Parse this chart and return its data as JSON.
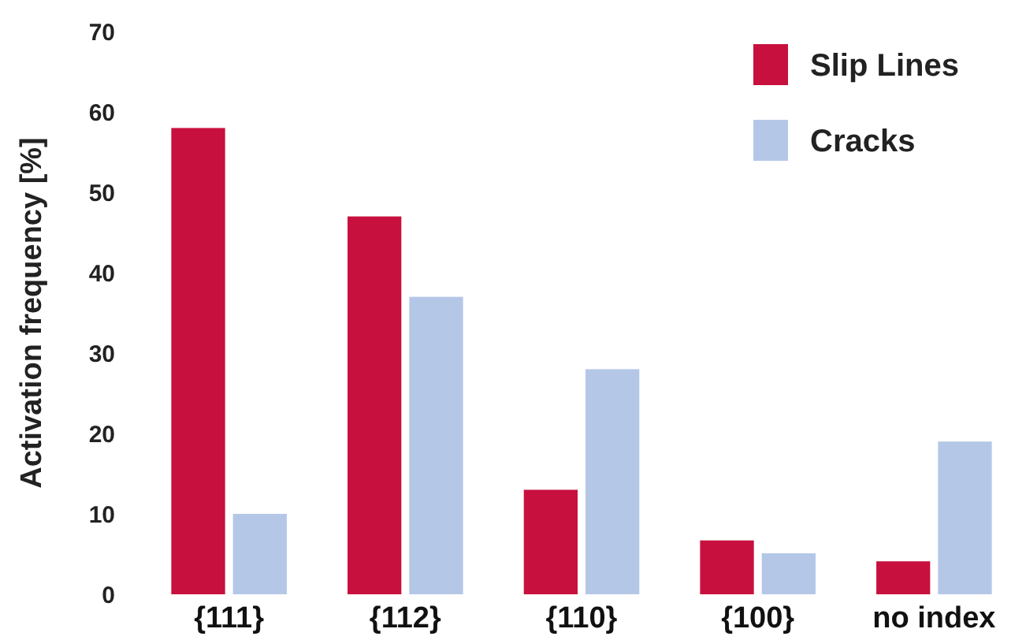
{
  "chart_data": {
    "type": "bar",
    "ylabel": "Activation frequency [%]",
    "categories": [
      "{111}",
      "{112}",
      "{110}",
      "{100}",
      "no index"
    ],
    "series": [
      {
        "name": "Slip Lines",
        "color": "#c8103e",
        "values": [
          58,
          47,
          13,
          6.7,
          4.1
        ]
      },
      {
        "name": "Cracks",
        "color": "#b4c7e7",
        "values": [
          10,
          37,
          28,
          5.1,
          19
        ]
      }
    ],
    "ylim": [
      0,
      70
    ],
    "yticks": [
      0,
      10,
      20,
      30,
      40,
      50,
      60,
      70
    ],
    "grid": false,
    "legend": "top right"
  }
}
